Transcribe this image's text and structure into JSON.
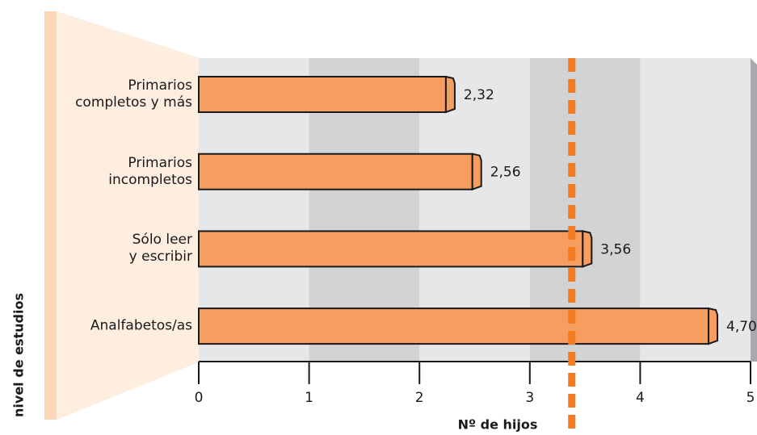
{
  "chart_data": {
    "type": "hbar",
    "categories": [
      "Primarios\ncompletos y más",
      "Primarios\nincompletos",
      "Sólo leer\ny escribir",
      "Analfabetos/as"
    ],
    "values": [
      2.32,
      2.56,
      3.56,
      4.7
    ],
    "value_labels": [
      "2,32",
      "2,56",
      "3,56",
      "4,70"
    ],
    "color": "#f79d5f",
    "xlim": [
      0,
      5
    ],
    "xticks": [
      0,
      1,
      2,
      3,
      4,
      5
    ],
    "xlabel": "Nº de hijos",
    "ylabel": "nivel de estudios",
    "reference_line": 3.38,
    "reference_color": "#f47b20"
  }
}
